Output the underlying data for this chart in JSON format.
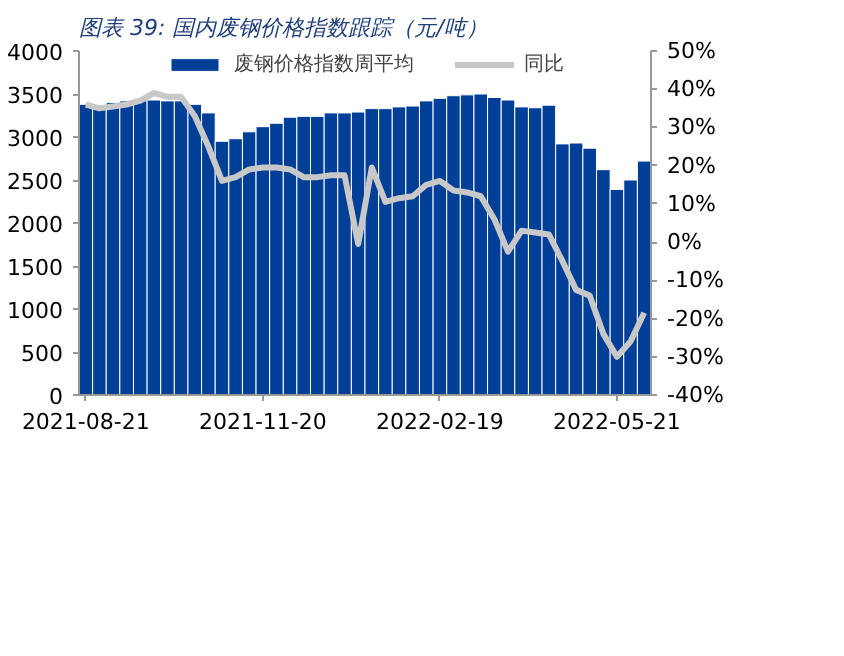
{
  "chart_data": {
    "type": "bar",
    "title": "图表 39: 国内废钢价格指数跟踪（元/吨）",
    "categories": [
      "2021-08-21",
      null,
      null,
      null,
      null,
      null,
      null,
      null,
      null,
      null,
      null,
      null,
      null,
      "2021-11-20",
      null,
      null,
      null,
      null,
      null,
      null,
      null,
      null,
      null,
      null,
      null,
      null,
      "2022-02-19",
      null,
      null,
      null,
      null,
      null,
      null,
      null,
      null,
      null,
      null,
      null,
      null,
      "2022-05-21",
      null,
      null
    ],
    "series": [
      {
        "name": "废钢价格指数周平均",
        "type": "bar",
        "color": "#003f98",
        "values": [
          3380,
          3370,
          3400,
          3420,
          3420,
          3430,
          3420,
          3420,
          3380,
          3280,
          2950,
          2980,
          3060,
          3120,
          3160,
          3230,
          3240,
          3240,
          3280,
          3280,
          3290,
          3330,
          3330,
          3350,
          3360,
          3420,
          3450,
          3480,
          3490,
          3500,
          3460,
          3430,
          3350,
          3340,
          3370,
          2920,
          2930,
          2870,
          2620,
          2390,
          2500,
          2720
        ]
      },
      {
        "name": "同比",
        "type": "line",
        "axis": "y2",
        "color": "#c8c8c8",
        "values": [
          36,
          35,
          35.5,
          36,
          37,
          39,
          38,
          38,
          33,
          25,
          16,
          17,
          19,
          19.5,
          19.5,
          19,
          17,
          17,
          17.5,
          17.5,
          -0.5,
          19.5,
          10.5,
          11.5,
          12,
          15,
          16,
          13.5,
          13,
          12,
          6,
          -2.5,
          3,
          2.5,
          2,
          -5,
          -12.5,
          -14,
          -24,
          -30,
          -26,
          -18.5
        ]
      }
    ],
    "ylim": [
      0,
      4000
    ],
    "yticks": [
      0,
      500,
      1000,
      1500,
      2000,
      2500,
      3000,
      3500,
      4000
    ],
    "y2lim": [
      -40,
      50
    ],
    "y2ticks": [
      {
        "value": -40,
        "label": "-40%"
      },
      {
        "value": -30,
        "label": "-30%"
      },
      {
        "value": -20,
        "label": "-20%"
      },
      {
        "value": -10,
        "label": "-10%"
      },
      {
        "value": 0,
        "label": "0%"
      },
      {
        "value": 10,
        "label": "10%"
      },
      {
        "value": 20,
        "label": "20%"
      },
      {
        "value": 30,
        "label": "30%"
      },
      {
        "value": 40,
        "label": "40%"
      },
      {
        "value": 50,
        "label": "50%"
      }
    ],
    "legend": "top",
    "grid": false,
    "line_style": "solid",
    "marker": "none"
  }
}
